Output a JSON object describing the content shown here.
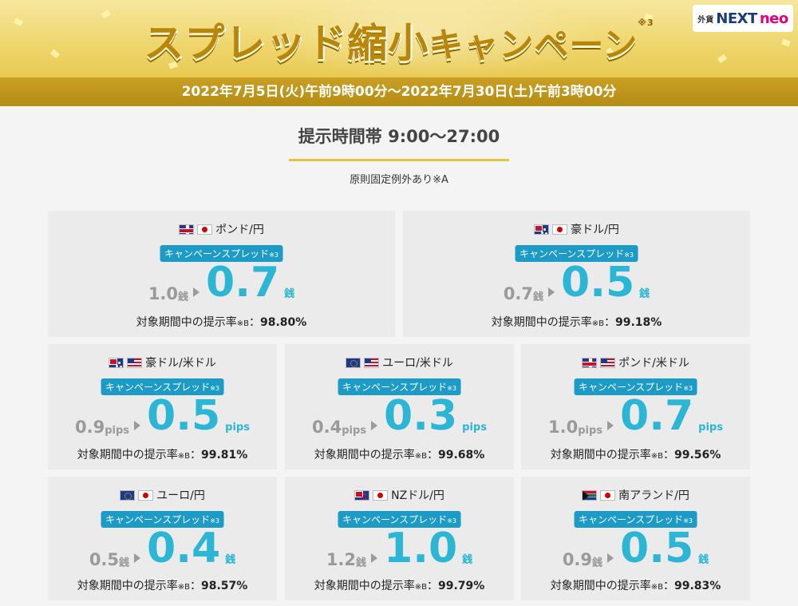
{
  "banner": {
    "title_big_1": "スプレッド縮小",
    "title_small": "キャンペーン",
    "title_note": "※3",
    "period": "2022年7月5日(火)午前9時00分〜2022年7月30日(土)午前3時00分",
    "logo": {
      "gai": "外貨",
      "next": "NEXT",
      "neo": "neo"
    }
  },
  "hours": {
    "label": "提示時間帯 9:00〜27:00",
    "note": "原則固定例外あり※A"
  },
  "common": {
    "badge_text": "キャンペーンスプレッド",
    "badge_note": "※3",
    "rate_prefix": "対象期間中の提示率",
    "rate_note": "※B",
    "rate_sep": "："
  },
  "cards": [
    {
      "pair": "ポンド/円",
      "flags": [
        "gb",
        "jp"
      ],
      "old": "1.0",
      "old_unit": "銭",
      "new": "0.7",
      "new_unit": "銭",
      "rate": "98.80%"
    },
    {
      "pair": "豪ドル/円",
      "flags": [
        "au",
        "jp"
      ],
      "old": "0.7",
      "old_unit": "銭",
      "new": "0.5",
      "new_unit": "銭",
      "rate": "99.18%"
    },
    {
      "pair": "豪ドル/米ドル",
      "flags": [
        "au",
        "us"
      ],
      "old": "0.9",
      "old_unit": "pips",
      "new": "0.5",
      "new_unit": "pips",
      "rate": "99.81%"
    },
    {
      "pair": "ユーロ/米ドル",
      "flags": [
        "eu",
        "us"
      ],
      "old": "0.4",
      "old_unit": "pips",
      "new": "0.3",
      "new_unit": "pips",
      "rate": "99.68%"
    },
    {
      "pair": "ポンド/米ドル",
      "flags": [
        "gb",
        "us"
      ],
      "old": "1.0",
      "old_unit": "pips",
      "new": "0.7",
      "new_unit": "pips",
      "rate": "99.56%"
    },
    {
      "pair": "ユーロ/円",
      "flags": [
        "eu",
        "jp"
      ],
      "old": "0.5",
      "old_unit": "銭",
      "new": "0.4",
      "new_unit": "銭",
      "rate": "98.57%"
    },
    {
      "pair": "NZドル/円",
      "flags": [
        "nz",
        "jp"
      ],
      "old": "1.2",
      "old_unit": "銭",
      "new": "1.0",
      "new_unit": "銭",
      "rate": "99.79%"
    },
    {
      "pair": "南アランド/円",
      "flags": [
        "za",
        "jp"
      ],
      "old": "0.9",
      "old_unit": "銭",
      "new": "0.5",
      "new_unit": "銭",
      "rate": "99.83%"
    }
  ]
}
